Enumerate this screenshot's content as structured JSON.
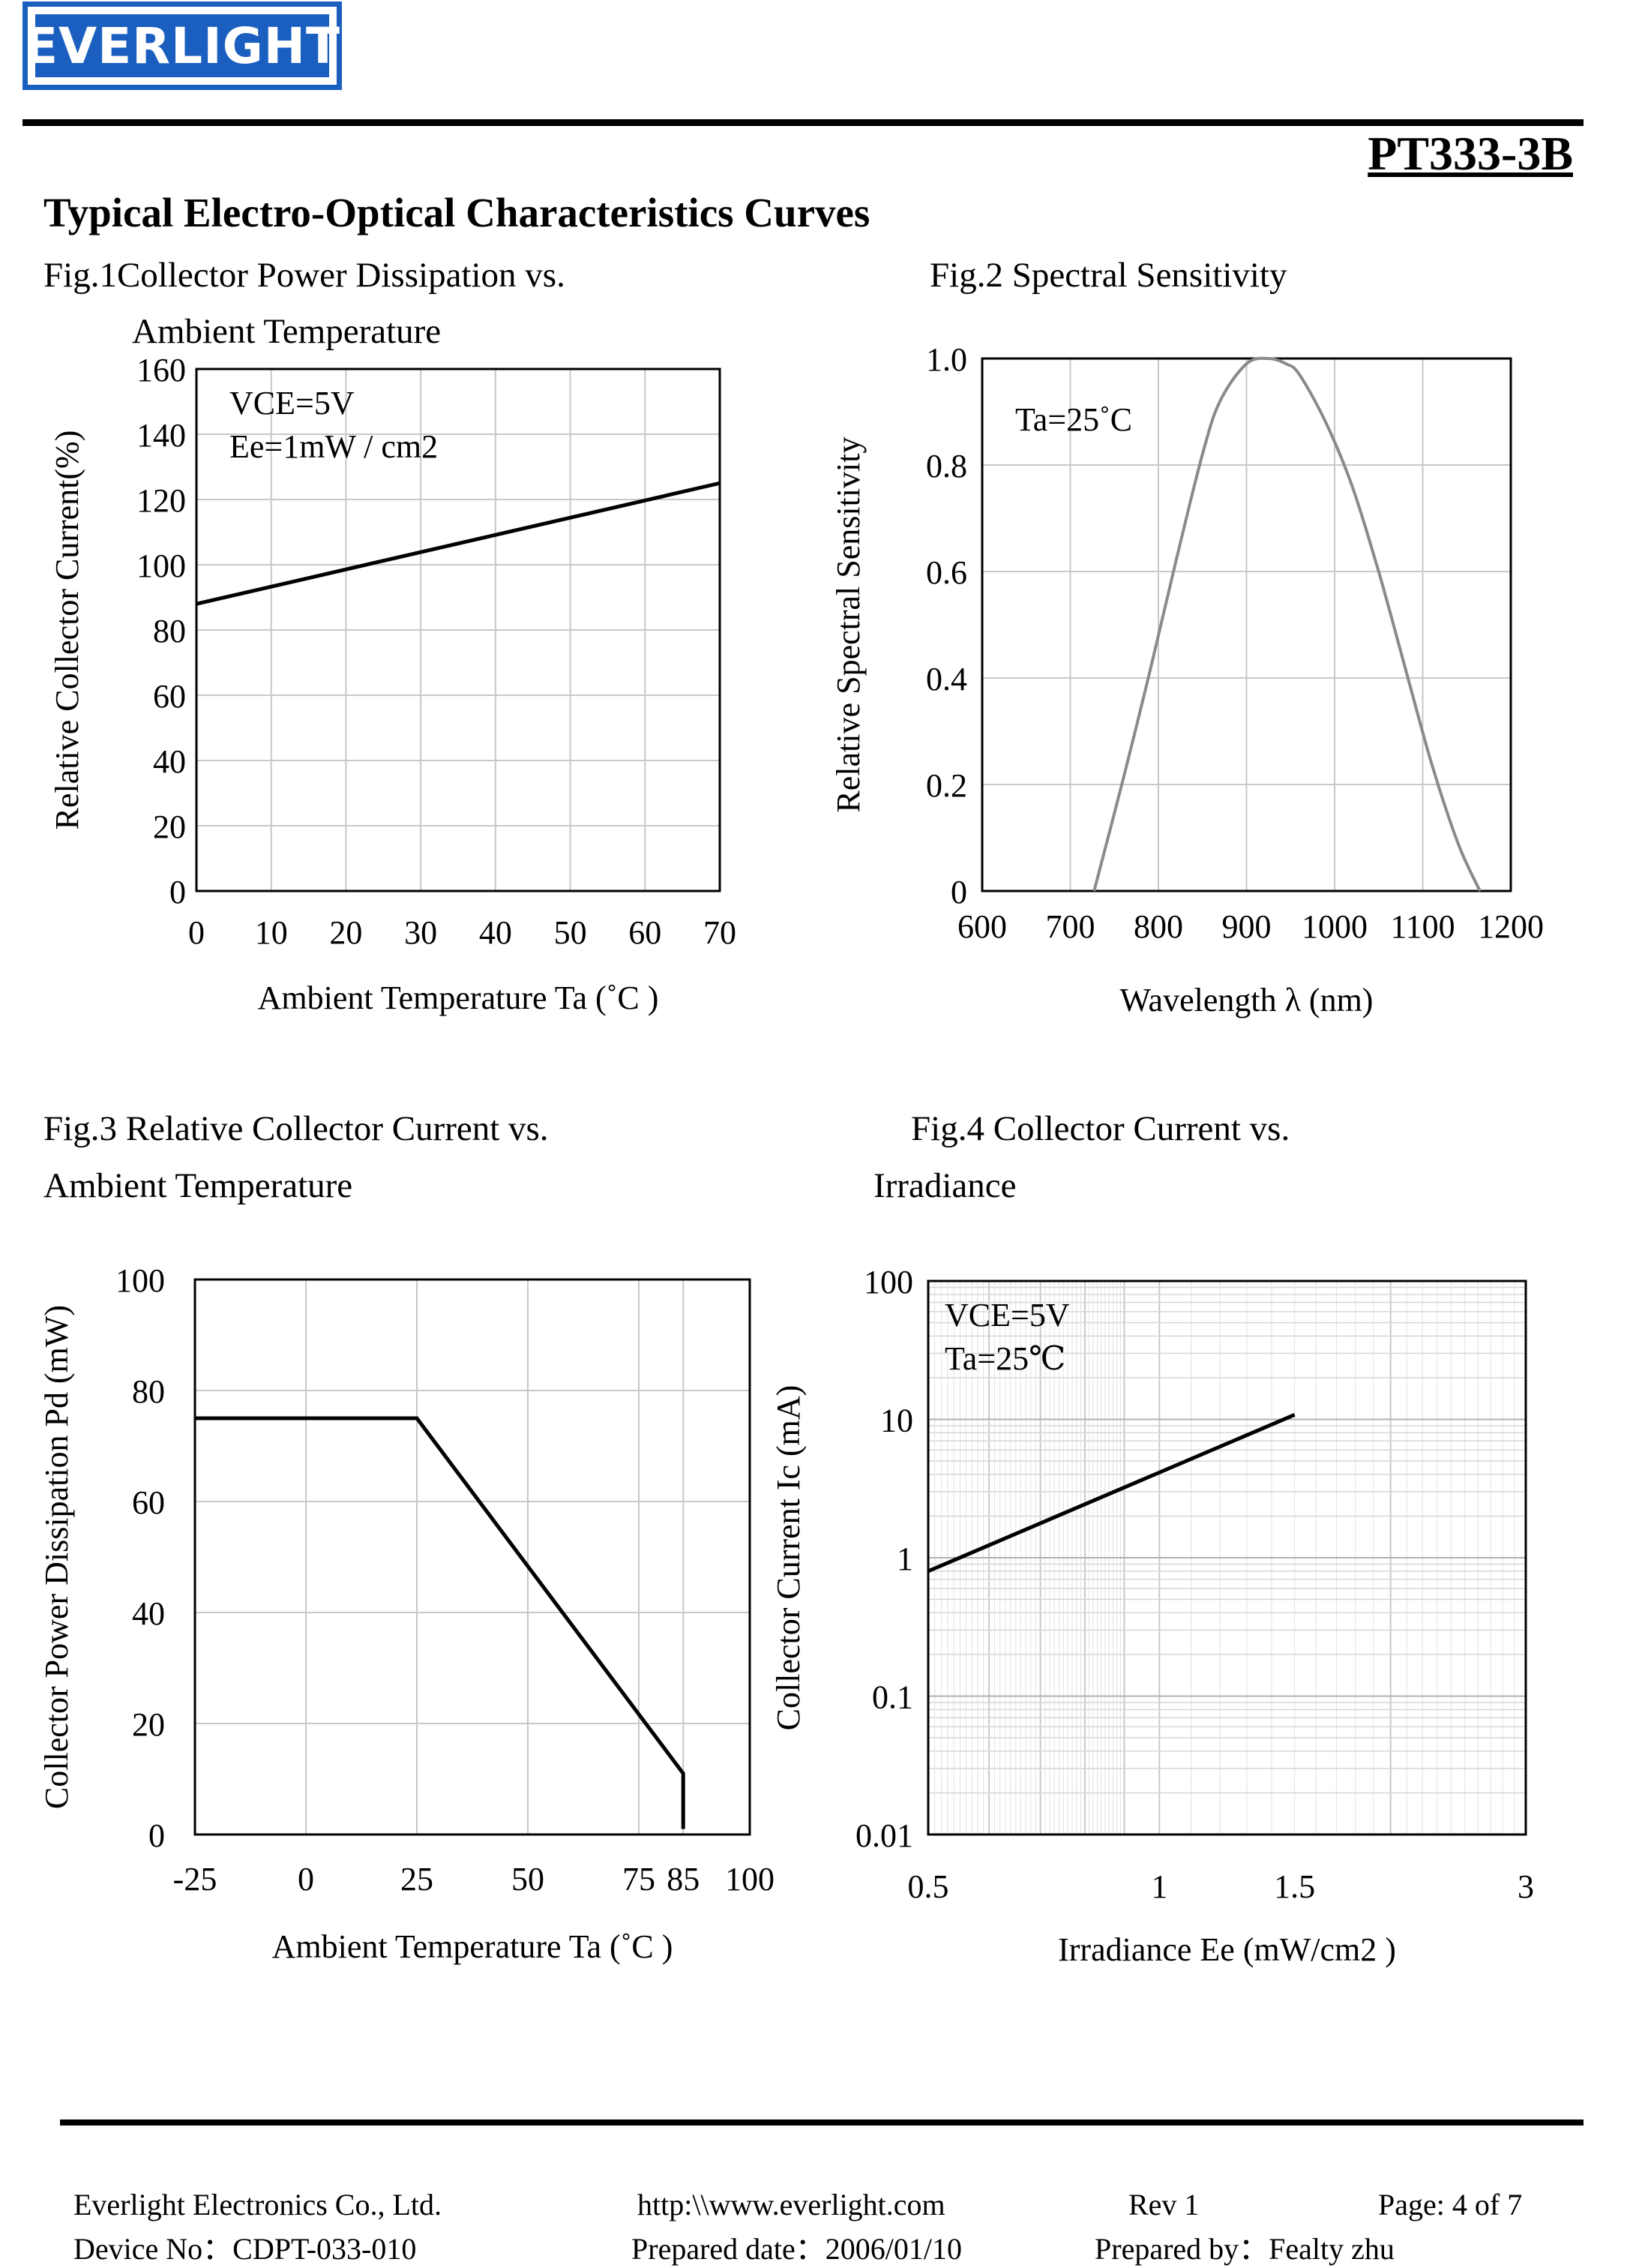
{
  "header": {
    "logo_text": "EVERLIGHT",
    "part_number": "PT333-3B",
    "brand_color": "#1a5fc0"
  },
  "section_title": "Typical Electro-Optical Characteristics Curves",
  "figures": {
    "fig1": {
      "caption_line1": "Fig.1Collector Power Dissipation vs.",
      "caption_line2": "Ambient Temperature"
    },
    "fig2": {
      "caption_line1": "Fig.2 Spectral Sensitivity"
    },
    "fig3": {
      "caption_line1": "Fig.3 Relative Collector Current vs.",
      "caption_line2": "Ambient Temperature"
    },
    "fig4": {
      "caption_line1": "Fig.4 Collector Current vs.",
      "caption_line2": "Irradiance"
    }
  },
  "chart_data": [
    {
      "type": "line",
      "xlabel": "Ambient Temperature Ta (˚C )",
      "ylabel": "Relative Collector Current(%)",
      "xlim": [
        0,
        70
      ],
      "ylim": [
        0,
        160
      ],
      "x_ticks": [
        "0",
        "10",
        "20",
        "30",
        "40",
        "50",
        "60",
        "70"
      ],
      "y_ticks": [
        "0",
        "20",
        "40",
        "60",
        "80",
        "100",
        "120",
        "140",
        "160"
      ],
      "annotations": [
        "VCE=5V",
        "Ee=1mW / cm2"
      ],
      "grid": true,
      "series": [
        {
          "x": [
            0,
            70
          ],
          "y": [
            88,
            125
          ]
        }
      ]
    },
    {
      "type": "line",
      "xlabel": "Wavelength λ (nm)",
      "ylabel": "Relative Spectral Sensitivity",
      "xlim": [
        600,
        1200
      ],
      "ylim": [
        0,
        1.0
      ],
      "x_ticks": [
        "600",
        "700",
        "800",
        "900",
        "1000",
        "1100",
        "1200"
      ],
      "y_ticks": [
        "0",
        "0.2",
        "0.4",
        "0.6",
        "0.8",
        "1.0"
      ],
      "annotations": [
        "Ta=25˚C"
      ],
      "grid": true,
      "series": [
        {
          "x": [
            727,
            760,
            790,
            820,
            850,
            870,
            900,
            925,
            945,
            960,
            990,
            1020,
            1050,
            1080,
            1110,
            1140,
            1165
          ],
          "y": [
            0,
            0.21,
            0.41,
            0.62,
            0.82,
            0.92,
            0.99,
            1.0,
            0.99,
            0.97,
            0.88,
            0.76,
            0.6,
            0.42,
            0.24,
            0.09,
            0
          ]
        }
      ]
    },
    {
      "type": "line",
      "xlabel": "Ambient Temperature Ta (˚C   )",
      "ylabel": "Collector Power Dissipation Pd (mW)",
      "xlim": [
        -25,
        100
      ],
      "ylim": [
        0,
        100
      ],
      "x_ticks": [
        "-25",
        "0",
        "25",
        "50",
        "75",
        "85",
        "100"
      ],
      "y_ticks": [
        "0",
        "20",
        "40",
        "60",
        "80",
        "100"
      ],
      "grid": true,
      "series": [
        {
          "x": [
            -25,
            25,
            85,
            85
          ],
          "y": [
            75,
            75,
            11,
            1
          ]
        }
      ]
    },
    {
      "type": "line",
      "xlabel": "Irradiance Ee (mW/cm2 )",
      "ylabel": "Collector Current Ic (mA)",
      "x_scale": "log",
      "y_scale": "log",
      "xlim": [
        0.5,
        3
      ],
      "ylim": [
        0.01,
        100
      ],
      "x_ticks": [
        "0.5",
        "1",
        "1.5",
        "3"
      ],
      "y_ticks": [
        "0.01",
        "0.1",
        "1",
        "10",
        "100"
      ],
      "annotations": [
        "VCE=5V",
        "Ta=25℃"
      ],
      "grid": true,
      "series": [
        {
          "x": [
            0.5,
            1.5
          ],
          "y": [
            0.8,
            10.8
          ]
        }
      ]
    }
  ],
  "footer": {
    "company": "Everlight Electronics Co., Ltd.",
    "url": "http:\\\\www.everlight.com",
    "rev": "Rev 1",
    "page": "Page: 4 of 7",
    "device_no": "Device No：CDPT-033-010",
    "prepared_date": "Prepared date：2006/01/10",
    "prepared_by": "Prepared by：Fealty zhu"
  }
}
